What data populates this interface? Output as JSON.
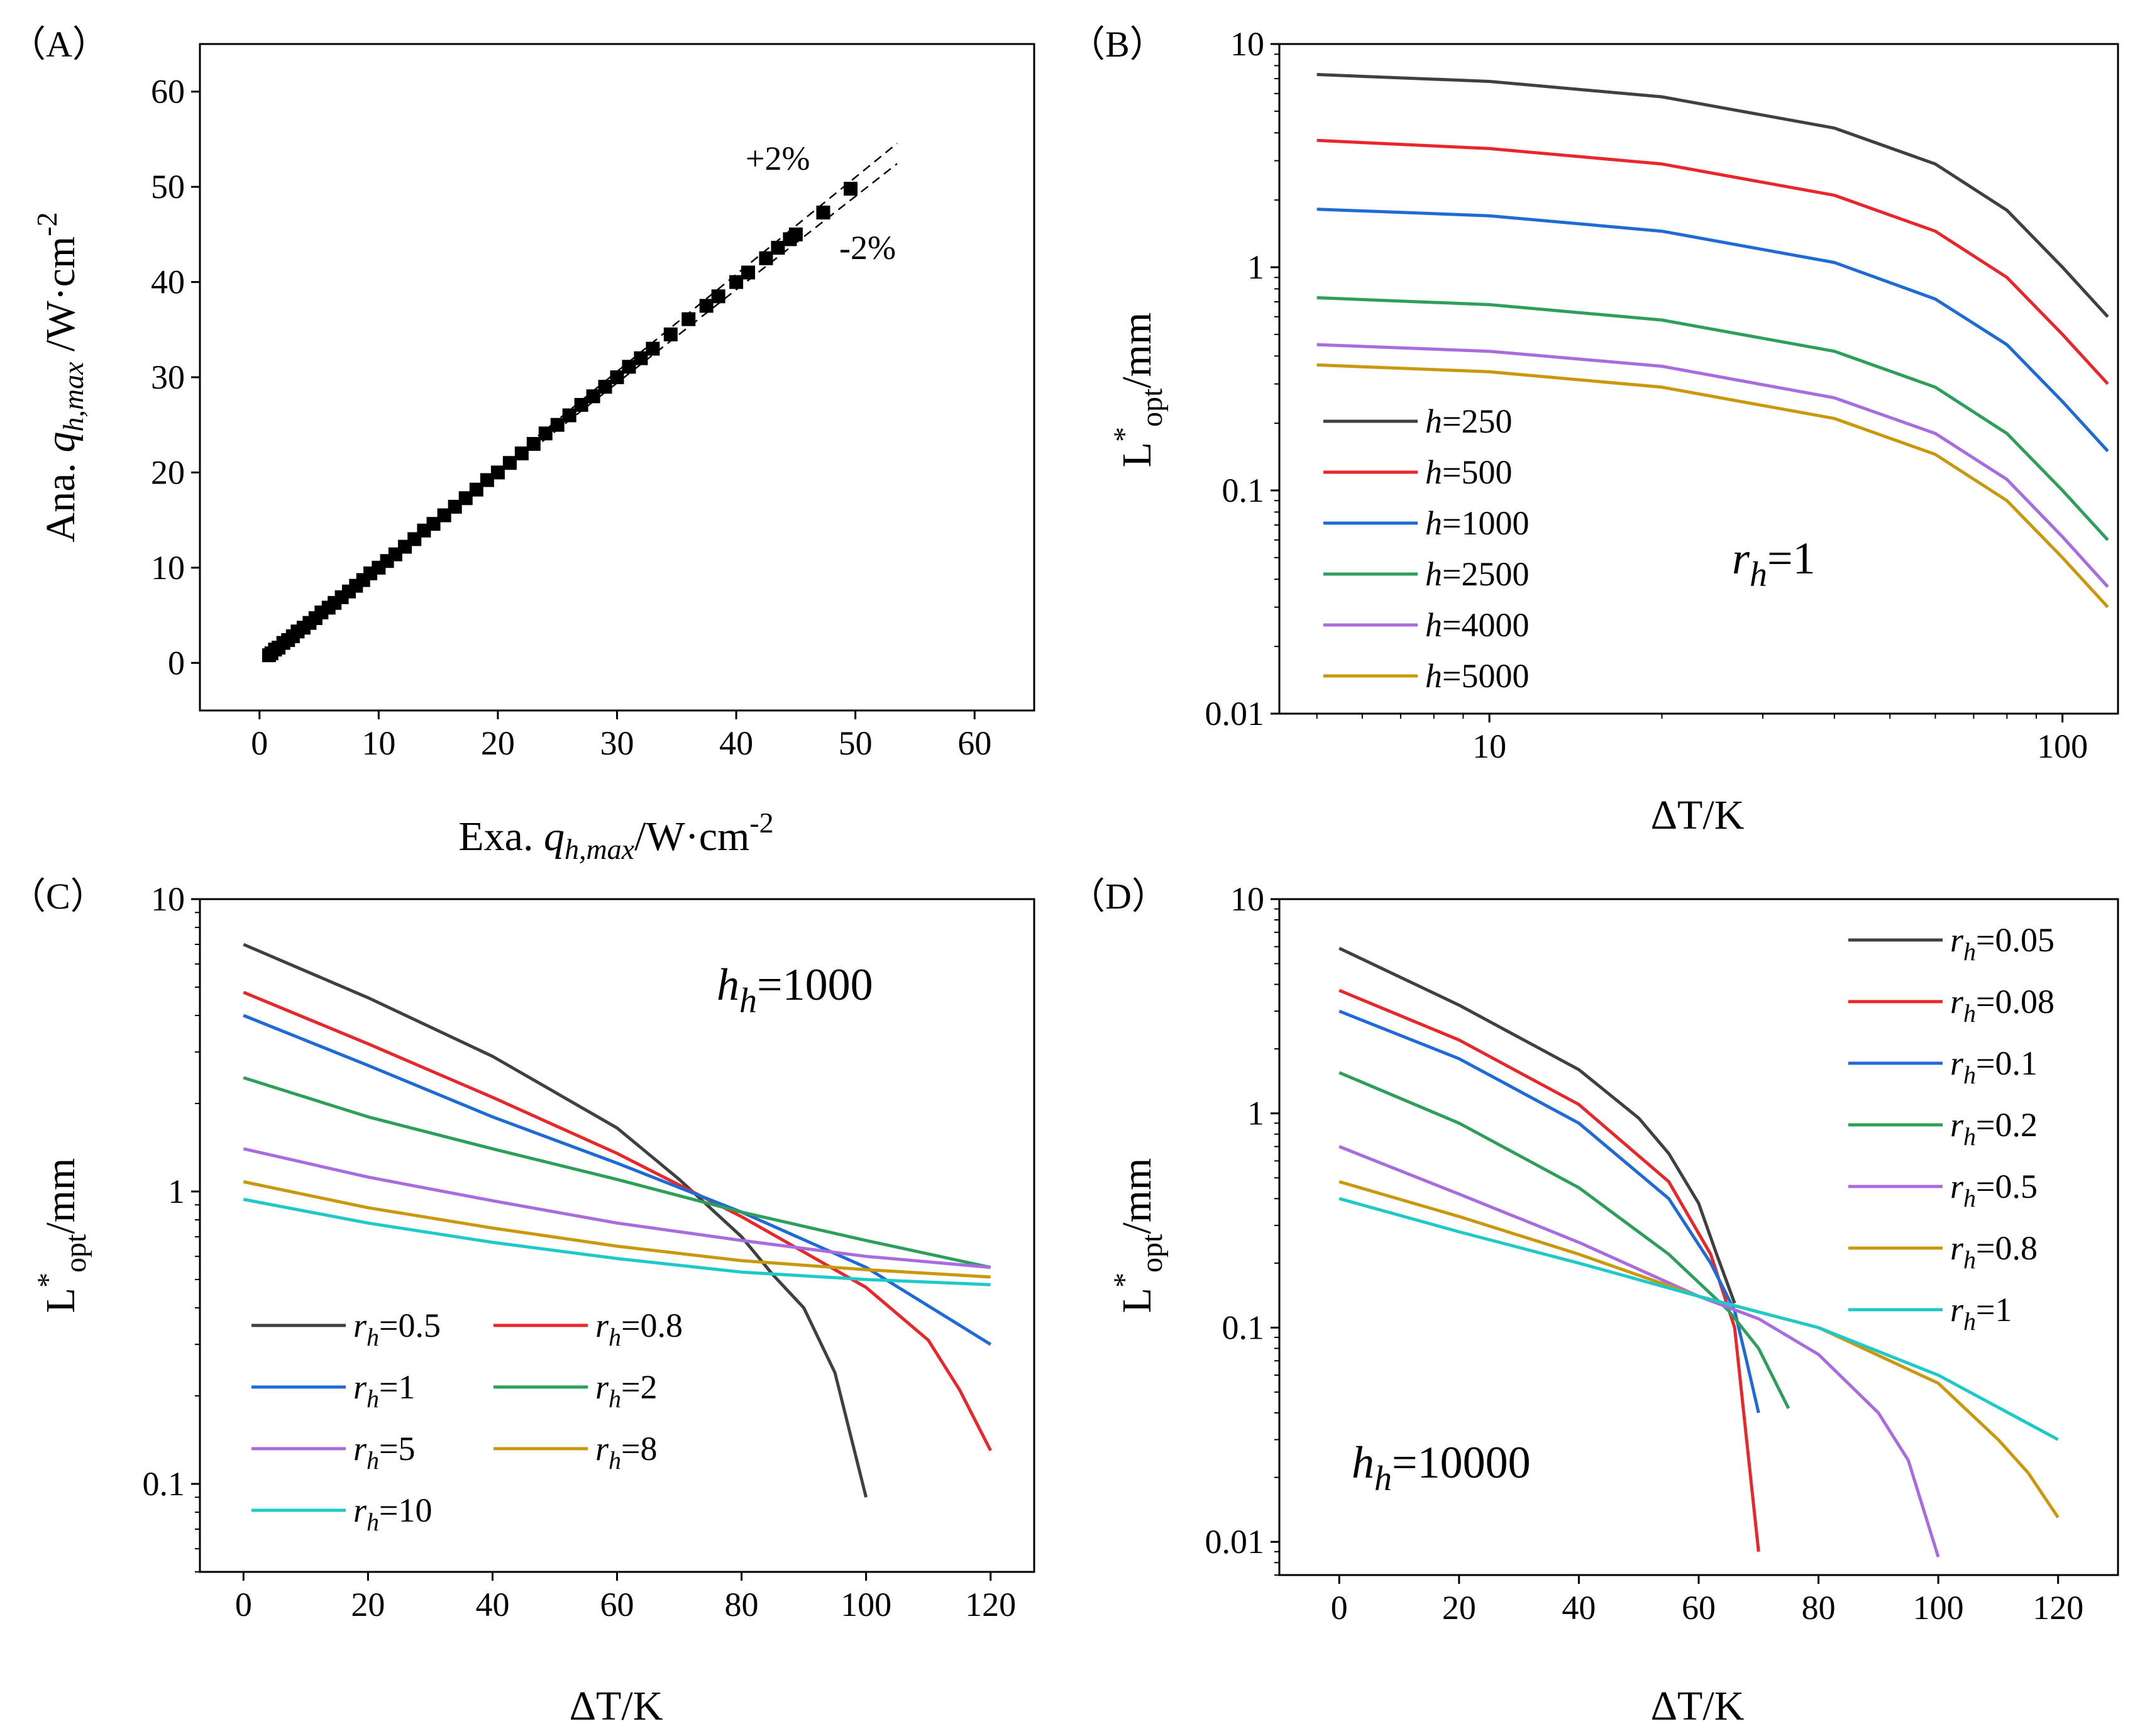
{
  "panels": [
    {
      "id": "A",
      "label": "（A）",
      "xlabel": {
        "prefix": "Exa. ",
        "italic": "q",
        "sub": "h,max",
        "unit": "/W·cm",
        "sup": "-2"
      },
      "ylabel": {
        "prefix": "Ana.  ",
        "italic": "q",
        "sub": "h,max",
        "unit": " /W·cm",
        "sup": "-2"
      },
      "annotations": [
        "+2%",
        "-2%"
      ]
    },
    {
      "id": "B",
      "label": "（B）",
      "xlabel": "ΔT/K",
      "ylabel": {
        "main": "L",
        "sup": "*",
        "sub": "opt",
        "unit": "/mm"
      },
      "note": {
        "italic": "r",
        "sub": "h",
        "rest": "=1"
      },
      "legend_prefix": "h"
    },
    {
      "id": "C",
      "label": "（C）",
      "xlabel": "ΔT/K",
      "ylabel": {
        "main": "L",
        "sup": "*",
        "sub": "opt",
        "unit": "/mm"
      },
      "note": {
        "italic": "h",
        "sub": "h",
        "rest": "=1000"
      },
      "legend_prefix": "r",
      "legend_sub": "h"
    },
    {
      "id": "D",
      "label": "（D）",
      "xlabel": "ΔT/K",
      "ylabel": {
        "main": "L",
        "sup": "*",
        "sub": "opt",
        "unit": "/mm"
      },
      "note": {
        "italic": "h",
        "sub": "h",
        "rest": "=10000"
      },
      "legend_prefix": "r",
      "legend_sub": "h"
    }
  ],
  "chart_data": [
    {
      "panel": "A",
      "type": "scatter",
      "xlim": [
        -5,
        65
      ],
      "ylim": [
        -5,
        65
      ],
      "xticks": [
        0,
        10,
        20,
        30,
        40,
        50,
        60
      ],
      "yticks": [
        0,
        10,
        20,
        30,
        40,
        50,
        60
      ],
      "series": [
        {
          "name": "",
          "color": "#000000",
          "points": [
            [
              0.8,
              0.8
            ],
            [
              1.0,
              1.0
            ],
            [
              1.3,
              1.4
            ],
            [
              1.6,
              1.6
            ],
            [
              2.0,
              2.1
            ],
            [
              2.4,
              2.4
            ],
            [
              2.8,
              2.8
            ],
            [
              3.2,
              3.3
            ],
            [
              3.7,
              3.7
            ],
            [
              4.2,
              4.2
            ],
            [
              4.7,
              4.7
            ],
            [
              5.2,
              5.3
            ],
            [
              5.8,
              5.8
            ],
            [
              6.3,
              6.3
            ],
            [
              6.9,
              6.9
            ],
            [
              7.5,
              7.5
            ],
            [
              8.1,
              8.1
            ],
            [
              8.7,
              8.7
            ],
            [
              9.3,
              9.4
            ],
            [
              10.0,
              10.0
            ],
            [
              10.7,
              10.7
            ],
            [
              11.4,
              11.4
            ],
            [
              12.2,
              12.2
            ],
            [
              13.0,
              13.0
            ],
            [
              13.8,
              13.9
            ],
            [
              14.6,
              14.6
            ],
            [
              15.5,
              15.5
            ],
            [
              16.4,
              16.4
            ],
            [
              17.3,
              17.3
            ],
            [
              18.2,
              18.2
            ],
            [
              19.1,
              19.2
            ],
            [
              20.0,
              20.0
            ],
            [
              21.0,
              21.0
            ],
            [
              22.0,
              22.0
            ],
            [
              23.0,
              23.0
            ],
            [
              24.0,
              24.1
            ],
            [
              25.0,
              25.0
            ],
            [
              26.0,
              26.0
            ],
            [
              27.0,
              27.1
            ],
            [
              28.0,
              28.0
            ],
            [
              29.0,
              29.0
            ],
            [
              30.0,
              30.0
            ],
            [
              31.0,
              31.1
            ],
            [
              32.0,
              32.0
            ],
            [
              33.0,
              33.0
            ],
            [
              34.5,
              34.5
            ],
            [
              36.0,
              36.1
            ],
            [
              37.5,
              37.5
            ],
            [
              38.5,
              38.5
            ],
            [
              40.0,
              40.0
            ],
            [
              41.0,
              41.0
            ],
            [
              42.5,
              42.5
            ],
            [
              43.5,
              43.6
            ],
            [
              44.5,
              44.5
            ],
            [
              45.0,
              45.0
            ],
            [
              47.3,
              47.3
            ],
            [
              49.6,
              49.8
            ]
          ]
        }
      ],
      "reference_lines": [
        {
          "name": "+2%",
          "slope": 1.02,
          "dashed": true
        },
        {
          "name": "-2%",
          "slope": 0.98,
          "dashed": true
        }
      ]
    },
    {
      "panel": "B",
      "type": "line",
      "xscale": "log",
      "yscale": "log",
      "xlim": [
        4.3,
        125
      ],
      "ylim": [
        0.01,
        10
      ],
      "xticks": [
        10,
        100
      ],
      "yticks": [
        0.01,
        0.1,
        1,
        10
      ],
      "ytick_labels": [
        "0.01",
        "0.1",
        "1",
        "10"
      ],
      "x": [
        5,
        10,
        20,
        40,
        60,
        80,
        100,
        120
      ],
      "legend_loc": "lower-left",
      "series": [
        {
          "name": "250",
          "color": "#404040",
          "values": [
            7.3,
            6.8,
            5.8,
            4.2,
            2.9,
            1.8,
            1.0,
            0.6
          ]
        },
        {
          "name": "500",
          "color": "#e8272a",
          "values": [
            3.7,
            3.4,
            2.9,
            2.1,
            1.45,
            0.9,
            0.5,
            0.3
          ]
        },
        {
          "name": "1000",
          "color": "#1f6bd6",
          "values": [
            1.82,
            1.7,
            1.45,
            1.05,
            0.72,
            0.45,
            0.25,
            0.15
          ]
        },
        {
          "name": "2500",
          "color": "#2e9e5b",
          "values": [
            0.73,
            0.68,
            0.58,
            0.42,
            0.29,
            0.18,
            0.1,
            0.06
          ]
        },
        {
          "name": "4000",
          "color": "#a86be0",
          "values": [
            0.45,
            0.42,
            0.36,
            0.26,
            0.18,
            0.112,
            0.062,
            0.037
          ]
        },
        {
          "name": "5000",
          "color": "#c9980d",
          "values": [
            0.365,
            0.34,
            0.29,
            0.21,
            0.145,
            0.09,
            0.05,
            0.03
          ]
        }
      ]
    },
    {
      "panel": "C",
      "type": "line",
      "yscale": "log",
      "xlim": [
        -7,
        127
      ],
      "ylim": [
        0.05,
        10
      ],
      "xticks": [
        0,
        20,
        40,
        60,
        80,
        100,
        120
      ],
      "yticks": [
        0.1,
        1,
        10
      ],
      "ytick_labels": [
        "0.1",
        "1",
        "10"
      ],
      "legend_loc": "lower-left",
      "series": [
        {
          "name": "0.5",
          "color": "#404040",
          "x": [
            0,
            20,
            40,
            60,
            70,
            80,
            85,
            90,
            95,
            100
          ],
          "values": [
            7.0,
            4.6,
            2.9,
            1.65,
            1.1,
            0.7,
            0.52,
            0.4,
            0.24,
            0.09
          ]
        },
        {
          "name": "0.8",
          "color": "#e8272a",
          "x": [
            0,
            20,
            40,
            60,
            80,
            100,
            110,
            115,
            120
          ],
          "values": [
            4.8,
            3.2,
            2.1,
            1.35,
            0.82,
            0.47,
            0.31,
            0.21,
            0.13
          ]
        },
        {
          "name": "1",
          "color": "#1f6bd6",
          "x": [
            0,
            20,
            40,
            60,
            80,
            100,
            120
          ],
          "values": [
            4.0,
            2.7,
            1.8,
            1.25,
            0.85,
            0.55,
            0.3
          ]
        },
        {
          "name": "2",
          "color": "#2e9e5b",
          "x": [
            0,
            20,
            40,
            60,
            80,
            100,
            120
          ],
          "values": [
            2.45,
            1.8,
            1.4,
            1.1,
            0.85,
            0.68,
            0.55
          ]
        },
        {
          "name": "5",
          "color": "#a86be0",
          "x": [
            0,
            20,
            40,
            60,
            80,
            100,
            120
          ],
          "values": [
            1.4,
            1.12,
            0.93,
            0.78,
            0.68,
            0.6,
            0.55
          ]
        },
        {
          "name": "8",
          "color": "#c9980d",
          "x": [
            0,
            20,
            40,
            60,
            80,
            100,
            120
          ],
          "values": [
            1.08,
            0.88,
            0.75,
            0.65,
            0.58,
            0.54,
            0.51
          ]
        },
        {
          "name": "10",
          "color": "#1fc9c9",
          "x": [
            0,
            20,
            40,
            60,
            80,
            100,
            120
          ],
          "values": [
            0.94,
            0.78,
            0.67,
            0.59,
            0.53,
            0.5,
            0.48
          ]
        }
      ]
    },
    {
      "panel": "D",
      "type": "line",
      "yscale": "log",
      "xlim": [
        -10,
        130
      ],
      "ylim": [
        0.007,
        10
      ],
      "xticks": [
        0,
        20,
        40,
        60,
        80,
        100,
        120
      ],
      "yticks": [
        0.01,
        0.1,
        1,
        10
      ],
      "ytick_labels": [
        "0.01",
        "0.1",
        "1",
        "10"
      ],
      "legend_loc": "top-right",
      "series": [
        {
          "name": "0.05",
          "color": "#404040",
          "x": [
            0,
            20,
            40,
            50,
            55,
            60,
            63,
            66
          ],
          "values": [
            5.9,
            3.2,
            1.6,
            0.95,
            0.65,
            0.38,
            0.22,
            0.13
          ]
        },
        {
          "name": "0.08",
          "color": "#e8272a",
          "x": [
            0,
            20,
            40,
            55,
            62,
            66,
            68,
            70
          ],
          "values": [
            3.75,
            2.2,
            1.1,
            0.48,
            0.22,
            0.1,
            0.03,
            0.009
          ]
        },
        {
          "name": "0.1",
          "color": "#1f6bd6",
          "x": [
            0,
            20,
            40,
            55,
            62,
            66,
            68,
            70
          ],
          "values": [
            3.0,
            1.8,
            0.9,
            0.4,
            0.2,
            0.12,
            0.07,
            0.04
          ]
        },
        {
          "name": "0.2",
          "color": "#2e9e5b",
          "x": [
            0,
            20,
            40,
            55,
            65,
            70,
            75
          ],
          "values": [
            1.55,
            0.9,
            0.45,
            0.22,
            0.12,
            0.08,
            0.042
          ]
        },
        {
          "name": "0.5",
          "color": "#a86be0",
          "x": [
            0,
            20,
            40,
            60,
            70,
            80,
            90,
            95,
            100
          ],
          "values": [
            0.7,
            0.42,
            0.25,
            0.14,
            0.11,
            0.075,
            0.04,
            0.024,
            0.0085
          ]
        },
        {
          "name": "0.8",
          "color": "#c9980d",
          "x": [
            0,
            20,
            40,
            60,
            80,
            100,
            110,
            115,
            120
          ],
          "values": [
            0.48,
            0.33,
            0.22,
            0.14,
            0.1,
            0.055,
            0.03,
            0.021,
            0.013
          ]
        },
        {
          "name": "1",
          "color": "#1fc9c9",
          "x": [
            0,
            20,
            40,
            60,
            80,
            100,
            120
          ],
          "values": [
            0.4,
            0.28,
            0.2,
            0.14,
            0.1,
            0.06,
            0.03
          ]
        }
      ]
    }
  ]
}
